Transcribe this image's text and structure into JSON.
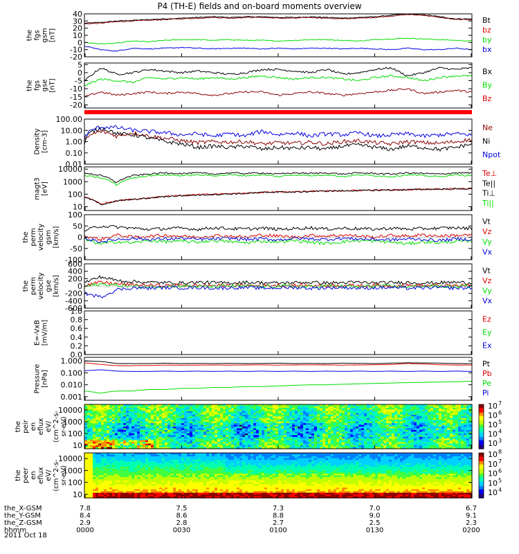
{
  "title": "P4 (TH-E) fields and on-board moments overview",
  "date_label": "2011 Oct 18",
  "colors": {
    "black": "#000000",
    "red": "#e00000",
    "darkred": "#8b0000",
    "green": "#00dd00",
    "blue": "#0000e0"
  },
  "chart_data": [
    {
      "type": "line",
      "name": "fgs-gsm",
      "ylabel": [
        "the",
        "fgs",
        "gsm",
        "[nT]"
      ],
      "ylim": [
        -20,
        40
      ],
      "yticks": [
        "40",
        "30",
        "20",
        "10",
        "0",
        "-10",
        "-20"
      ],
      "series": [
        {
          "name": "Bt",
          "values": [
            27,
            28,
            30,
            31,
            32,
            33,
            34,
            35,
            36,
            35,
            36,
            36,
            35,
            35,
            36,
            35,
            34,
            35,
            36,
            38,
            40,
            39,
            36,
            33,
            33
          ]
        },
        {
          "name": "bz",
          "values": [
            26,
            27,
            29,
            30,
            31,
            32,
            33,
            34,
            35,
            34,
            35,
            35,
            34,
            34,
            35,
            34,
            33,
            34,
            35,
            37,
            39,
            38,
            35,
            32,
            32
          ]
        },
        {
          "name": "by",
          "values": [
            0,
            -2,
            -1,
            2,
            1,
            3,
            4,
            4,
            3,
            4,
            3,
            3,
            2,
            3,
            4,
            4,
            3,
            2,
            4,
            5,
            6,
            5,
            4,
            3,
            2
          ]
        },
        {
          "name": "bx",
          "values": [
            -5,
            -10,
            -12,
            -8,
            -9,
            -8,
            -7,
            -8,
            -9,
            -8,
            -8,
            -9,
            -8,
            -9,
            -8,
            -8,
            -9,
            -8,
            -9,
            -10,
            -8,
            -10,
            -10,
            -8,
            -10
          ]
        }
      ]
    },
    {
      "type": "line",
      "name": "fgs-gse",
      "ylabel": [
        "the",
        "fgs",
        "gse",
        "[nT]"
      ],
      "ylim": [
        -22,
        6
      ],
      "yticks": [
        "5",
        "0",
        "-5",
        "-10",
        "-15",
        "-20"
      ],
      "series": [
        {
          "name": "Bx",
          "values": [
            -5,
            3,
            -1,
            0,
            2,
            1,
            0,
            1,
            0,
            -1,
            0,
            2,
            2,
            1,
            0,
            2,
            -1,
            0,
            2,
            3,
            -2,
            0,
            3,
            2,
            3
          ]
        },
        {
          "name": "By",
          "values": [
            -8,
            -4,
            -5,
            -6,
            -3,
            -4,
            -3,
            -4,
            -3,
            -4,
            -3,
            -2,
            -3,
            -4,
            -3,
            -3,
            -4,
            -5,
            -3,
            -2,
            -3,
            -5,
            -3,
            -2,
            -2
          ]
        },
        {
          "name": "Bz",
          "values": [
            -15,
            -12,
            -14,
            -13,
            -12,
            -13,
            -12,
            -13,
            -14,
            -13,
            -12,
            -12,
            -14,
            -13,
            -12,
            -13,
            -14,
            -13,
            -12,
            -11,
            -10,
            -13,
            -12,
            -11,
            -12
          ]
        }
      ]
    },
    {
      "type": "line",
      "name": "density",
      "scale": "log",
      "ylabel": [
        "Density",
        "[cm-3]"
      ],
      "ylim": [
        0.01,
        100
      ],
      "yticks": [
        "100.00",
        "10.00",
        "1.00",
        "0.10",
        "0.01"
      ],
      "series": [
        {
          "name": "Ne",
          "values": [
            1,
            8,
            3,
            6,
            3,
            2,
            1.2,
            0.8,
            1,
            0.9,
            1,
            0.6,
            0.8,
            0.7,
            0.9,
            0.6,
            1,
            1.2,
            0.8,
            0.6,
            1,
            0.8,
            0.7,
            1,
            1.5
          ]
        },
        {
          "name": "Ni",
          "values": [
            0.5,
            15,
            5,
            4,
            2,
            1,
            0.6,
            0.3,
            0.4,
            0.3,
            0.4,
            0.2,
            0.3,
            0.25,
            0.3,
            0.2,
            0.4,
            0.5,
            0.3,
            0.2,
            0.4,
            0.3,
            0.2,
            0.3,
            0.6
          ]
        },
        {
          "name": "Npot",
          "values": [
            2,
            20,
            18,
            10,
            8,
            6,
            4,
            5,
            3,
            5,
            3,
            8,
            4,
            6,
            3,
            5,
            4,
            6,
            3,
            4,
            5,
            3,
            4,
            5,
            4
          ]
        }
      ]
    },
    {
      "type": "line",
      "name": "temperature",
      "scale": "log",
      "ylabel": [
        "magt3",
        "[eV]"
      ],
      "ylim": [
        5,
        15000
      ],
      "yticks": [
        "10000",
        "1000",
        "100",
        "10"
      ],
      "series": [
        {
          "name": "Te⊥",
          "values": [
            60,
            15,
            30,
            40,
            50,
            70,
            80,
            90,
            100,
            110,
            120,
            140,
            160,
            150,
            170,
            180,
            190,
            200,
            210,
            220,
            230,
            250,
            260,
            270,
            280
          ]
        },
        {
          "name": "Te||",
          "values": [
            55,
            14,
            28,
            38,
            48,
            65,
            75,
            85,
            95,
            105,
            115,
            135,
            155,
            145,
            165,
            175,
            185,
            195,
            205,
            215,
            225,
            245,
            255,
            265,
            275
          ]
        },
        {
          "name": "Ti⊥",
          "values": [
            5000,
            3000,
            800,
            3000,
            4000,
            5000,
            4500,
            5000,
            4000,
            5000,
            4500,
            5000,
            4000,
            5000,
            4500,
            5000,
            4000,
            5000,
            4500,
            4000,
            5000,
            4500,
            4000,
            5000,
            5000
          ]
        },
        {
          "name": "Ti||",
          "values": [
            3000,
            2000,
            500,
            2000,
            3000,
            3500,
            3000,
            3500,
            3000,
            3500,
            3000,
            3500,
            2500,
            3500,
            3000,
            3500,
            2500,
            3500,
            3000,
            2500,
            3500,
            3000,
            2500,
            3500,
            3000
          ]
        }
      ]
    },
    {
      "type": "line",
      "name": "perm-velocity-gsm",
      "ylabel": [
        "the",
        "perm",
        "velocity",
        "gsm",
        "[km/s]"
      ],
      "ylim": [
        -100,
        100
      ],
      "yticks": [
        "100",
        "50",
        "0",
        "-50",
        "-100"
      ],
      "series": [
        {
          "name": "Vt",
          "values": [
            30,
            50,
            45,
            40,
            35,
            38,
            40,
            35,
            42,
            38,
            36,
            40,
            35,
            38,
            42,
            36,
            40,
            38,
            35,
            40,
            36,
            38,
            40,
            42,
            38
          ]
        },
        {
          "name": "Vz",
          "values": [
            5,
            -10,
            10,
            0,
            5,
            8,
            5,
            0,
            8,
            5,
            0,
            10,
            5,
            0,
            8,
            5,
            10,
            5,
            0,
            8,
            5,
            10,
            5,
            8,
            10
          ]
        },
        {
          "name": "Vy",
          "values": [
            -10,
            -30,
            -20,
            -25,
            -15,
            -20,
            -18,
            -22,
            -15,
            -20,
            -25,
            -18,
            -20,
            -15,
            -22,
            -28,
            -20,
            -15,
            -18,
            -22,
            -30,
            -20,
            -25,
            -18,
            -20
          ]
        },
        {
          "name": "Vx",
          "values": [
            -5,
            -20,
            -10,
            -5,
            -10,
            -8,
            -5,
            -10,
            -8,
            -5,
            -10,
            -8,
            -12,
            -5,
            -8,
            -10,
            -5,
            -8,
            -10,
            -12,
            -8,
            -10,
            -15,
            -8,
            -10
          ]
        }
      ]
    },
    {
      "type": "line",
      "name": "perm-velocity-gse",
      "ylabel": [
        "the",
        "perm",
        "velocity",
        "gse",
        "[km/s]"
      ],
      "ylim": [
        -600,
        600
      ],
      "yticks": [
        "600",
        "400",
        "200",
        "0",
        "-200",
        "-400",
        "-600"
      ],
      "series": [
        {
          "name": "Vt",
          "values": [
            100,
            250,
            150,
            120,
            100,
            90,
            80,
            100,
            90,
            80,
            100,
            90,
            80,
            90,
            100,
            80,
            90,
            100,
            80,
            90,
            100,
            80,
            90,
            100,
            80
          ]
        },
        {
          "name": "Vz",
          "values": [
            20,
            100,
            60,
            30,
            20,
            10,
            20,
            10,
            20,
            10,
            15,
            10,
            20,
            10,
            15,
            10,
            20,
            10,
            15,
            10,
            20,
            10,
            15,
            10,
            20
          ]
        },
        {
          "name": "Vy",
          "values": [
            -10,
            50,
            20,
            -10,
            -20,
            -10,
            0,
            -10,
            -20,
            0,
            -10,
            -20,
            0,
            -10,
            -20,
            0,
            -10,
            -20,
            0,
            -10,
            -20,
            0,
            -10,
            -20,
            0
          ]
        },
        {
          "name": "Vx",
          "values": [
            -200,
            -300,
            -100,
            -50,
            -60,
            -40,
            -50,
            -40,
            -60,
            -50,
            -40,
            -60,
            -50,
            -40,
            -60,
            -50,
            -40,
            -60,
            -50,
            -40,
            -60,
            -50,
            -40,
            -60,
            -50
          ]
        }
      ]
    },
    {
      "type": "line",
      "name": "exb-field",
      "ylabel": [
        "E=-VxB",
        "[mV/m]"
      ],
      "ylim": [
        0,
        1
      ],
      "yticks": [
        "1.0",
        "0.8",
        "0.6",
        "0.4",
        "0.2",
        "0.0"
      ],
      "series": [
        {
          "name": "Ez",
          "values": []
        },
        {
          "name": "Ey",
          "values": []
        },
        {
          "name": "Ex",
          "values": []
        }
      ]
    },
    {
      "type": "line",
      "name": "pressure",
      "scale": "log",
      "ylabel": [
        "Pressure",
        "[nPa]"
      ],
      "ylim": [
        0.0005,
        2
      ],
      "yticks": [
        "1.000",
        "0.100",
        "0.010",
        "0.001"
      ],
      "series": [
        {
          "name": "Pt",
          "values": [
            1.0,
            0.9,
            0.6,
            0.6,
            0.6,
            0.65,
            0.6,
            0.62,
            0.6,
            0.63,
            0.6,
            0.62,
            0.65,
            0.6,
            0.62,
            0.6,
            0.65,
            0.62,
            0.6,
            0.65,
            0.7,
            0.68,
            0.65,
            0.6,
            0.6
          ]
        },
        {
          "name": "Pb",
          "values": [
            0.7,
            0.5,
            0.4,
            0.4,
            0.42,
            0.45,
            0.44,
            0.45,
            0.46,
            0.45,
            0.46,
            0.47,
            0.45,
            0.46,
            0.47,
            0.46,
            0.45,
            0.46,
            0.48,
            0.5,
            0.6,
            0.55,
            0.48,
            0.45,
            0.45
          ]
        },
        {
          "name": "Pe",
          "values": [
            0.003,
            0.002,
            0.003,
            0.003,
            0.004,
            0.004,
            0.005,
            0.005,
            0.006,
            0.006,
            0.007,
            0.007,
            0.008,
            0.009,
            0.01,
            0.01,
            0.011,
            0.012,
            0.013,
            0.014,
            0.015,
            0.016,
            0.017,
            0.018,
            0.02
          ]
        },
        {
          "name": "Pi",
          "values": [
            0.15,
            0.18,
            0.14,
            0.13,
            0.13,
            0.14,
            0.13,
            0.14,
            0.13,
            0.14,
            0.13,
            0.14,
            0.13,
            0.14,
            0.13,
            0.14,
            0.13,
            0.14,
            0.13,
            0.14,
            0.13,
            0.14,
            0.13,
            0.14,
            0.13
          ]
        }
      ]
    },
    {
      "type": "heatmap",
      "name": "peir-energy-flux",
      "ylabel": [
        "the",
        "peir",
        "en",
        "eflux",
        "eV/",
        "(cm^2-s-",
        "sr-eV)"
      ],
      "ylim": [
        5,
        30000
      ],
      "yticks": [
        "10000",
        "1000",
        "100",
        "10"
      ],
      "colorbar": {
        "min_exp": 3,
        "max_exp": 7,
        "labels": [
          "10",
          "10",
          "10",
          "10",
          "10"
        ],
        "label_exps": [
          "7",
          "6",
          "5",
          "4",
          "3"
        ]
      }
    },
    {
      "type": "heatmap",
      "name": "peer-energy-flux",
      "ylabel": [
        "the",
        "peer",
        "en",
        "eflux",
        "eV/",
        "(cm^2-s-",
        "sr-eV)"
      ],
      "ylim": [
        5,
        30000
      ],
      "yticks": [
        "10000",
        "1000",
        "100",
        "10"
      ],
      "colorbar": {
        "min_exp": 3.5,
        "max_exp": 8,
        "labels": [
          "10",
          "10",
          "10",
          "10",
          "10"
        ],
        "label_exps": [
          "8",
          "7",
          "6",
          "5",
          "4"
        ]
      }
    }
  ],
  "x_axis": {
    "rows": [
      {
        "label": "the_X-GSM",
        "values": [
          "7.8",
          "7.5",
          "7.3",
          "7.0",
          "6.7"
        ]
      },
      {
        "label": "the_Y-GSM",
        "values": [
          "8.4",
          "8.6",
          "8.8",
          "9.0",
          "9.1"
        ]
      },
      {
        "label": "the_Z-GSM",
        "values": [
          "2.9",
          "2.8",
          "2.7",
          "2.5",
          "2.3"
        ]
      },
      {
        "label": "hhmm",
        "values": [
          "0000",
          "0030",
          "0100",
          "0130",
          "0200"
        ]
      }
    ]
  }
}
